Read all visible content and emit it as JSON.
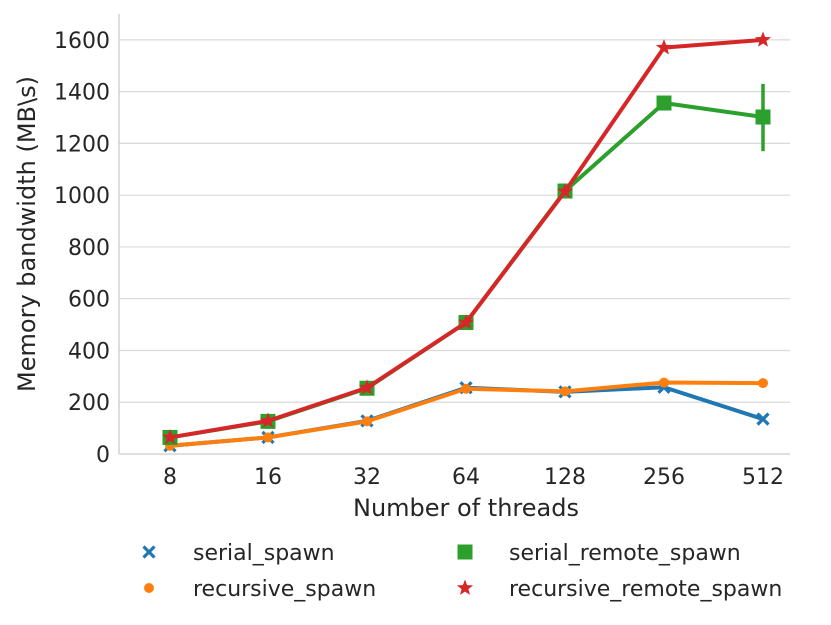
{
  "chart_data": {
    "type": "line",
    "title": "",
    "xlabel": "Number of threads",
    "ylabel": "Memory bandwidth (MB\\s)",
    "categories": [
      "8",
      "16",
      "32",
      "64",
      "128",
      "256",
      "512"
    ],
    "ylim": [
      0,
      1700
    ],
    "yticks": [
      0,
      200,
      400,
      600,
      800,
      1000,
      1200,
      1400,
      1600
    ],
    "grid": "horizontal",
    "legend_placement": "bottom",
    "series": [
      {
        "name": "serial_spawn",
        "color": "#1f77b4",
        "marker": "x",
        "values": [
          32,
          64,
          128,
          256,
          240,
          258,
          135
        ]
      },
      {
        "name": "recursive_spawn",
        "color": "#ff7f0e",
        "marker": "circle",
        "values": [
          32,
          64,
          126,
          252,
          242,
          276,
          274
        ]
      },
      {
        "name": "serial_remote_spawn",
        "color": "#2ca02c",
        "marker": "square",
        "values": [
          64,
          126,
          254,
          508,
          1016,
          1356,
          1302
        ],
        "error_bars": [
          null,
          null,
          null,
          null,
          null,
          null,
          [
            1170,
            1430
          ]
        ]
      },
      {
        "name": "recursive_remote_spawn",
        "color": "#d62728",
        "marker": "star",
        "values": [
          64,
          128,
          256,
          508,
          1014,
          1570,
          1600
        ]
      }
    ]
  }
}
